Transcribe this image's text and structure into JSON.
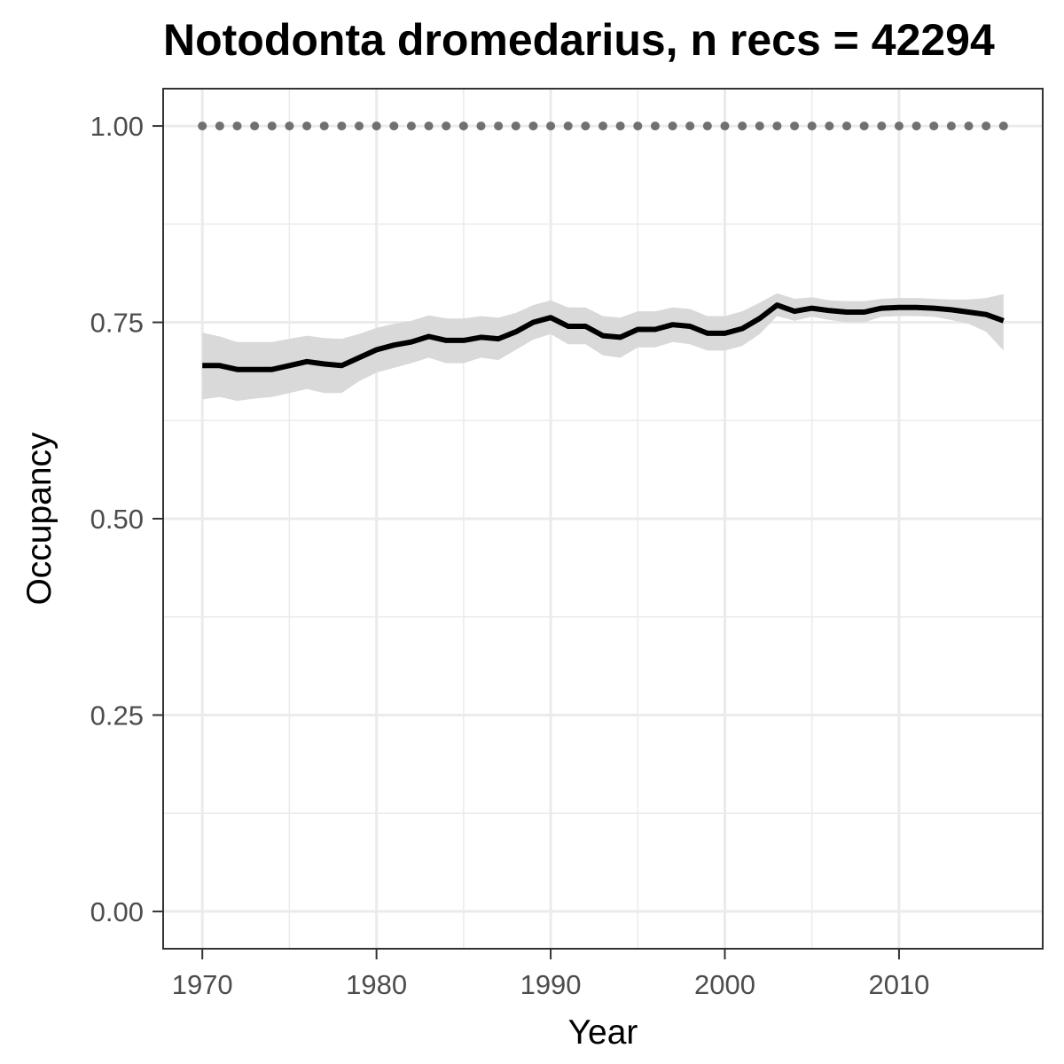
{
  "chart_data": {
    "type": "line",
    "title": "Notodonta dromedarius, n recs = 42294",
    "xlabel": "Year",
    "ylabel": "Occupancy",
    "xlim": [
      1967.75,
      2018.25
    ],
    "ylim": [
      -0.0475,
      1.0475
    ],
    "x_ticks": [
      1970,
      1980,
      1990,
      2000,
      2010
    ],
    "x_tick_labels": [
      "1970",
      "1980",
      "1990",
      "2000",
      "2010"
    ],
    "y_ticks": [
      0,
      0.25,
      0.5,
      0.75,
      1.0
    ],
    "y_tick_labels": [
      "0.00",
      "0.25",
      "0.50",
      "0.75",
      "1.00"
    ],
    "grid": true,
    "legend": "none",
    "colors": {
      "line": "#000000",
      "ribbon": "#d9d9d9",
      "reference": "#707070",
      "grid": "#ebebeb",
      "panel_border": "#333333"
    },
    "x": [
      1970,
      1971,
      1972,
      1973,
      1974,
      1975,
      1976,
      1977,
      1978,
      1979,
      1980,
      1981,
      1982,
      1983,
      1984,
      1985,
      1986,
      1987,
      1988,
      1989,
      1990,
      1991,
      1992,
      1993,
      1994,
      1995,
      1996,
      1997,
      1998,
      1999,
      2000,
      2001,
      2002,
      2003,
      2004,
      2005,
      2006,
      2007,
      2008,
      2009,
      2010,
      2011,
      2012,
      2013,
      2014,
      2015,
      2016
    ],
    "series": [
      {
        "values": [
          0.695,
          0.695,
          0.69,
          0.69,
          0.69,
          0.695,
          0.7,
          0.697,
          0.695,
          0.705,
          0.715,
          0.721,
          0.725,
          0.732,
          0.727,
          0.727,
          0.731,
          0.729,
          0.738,
          0.75,
          0.756,
          0.745,
          0.745,
          0.733,
          0.731,
          0.741,
          0.741,
          0.747,
          0.745,
          0.736,
          0.736,
          0.742,
          0.755,
          0.772,
          0.764,
          0.768,
          0.765,
          0.763,
          0.763,
          0.768,
          0.769,
          0.769,
          0.768,
          0.766,
          0.763,
          0.76,
          0.752
        ],
        "lower": [
          0.652,
          0.655,
          0.65,
          0.653,
          0.655,
          0.66,
          0.665,
          0.66,
          0.66,
          0.675,
          0.686,
          0.692,
          0.698,
          0.705,
          0.698,
          0.698,
          0.705,
          0.702,
          0.715,
          0.728,
          0.735,
          0.722,
          0.722,
          0.708,
          0.705,
          0.718,
          0.718,
          0.725,
          0.722,
          0.714,
          0.714,
          0.72,
          0.735,
          0.758,
          0.752,
          0.757,
          0.753,
          0.75,
          0.75,
          0.757,
          0.758,
          0.758,
          0.757,
          0.753,
          0.748,
          0.738,
          0.714
        ],
        "upper": [
          0.737,
          0.732,
          0.725,
          0.725,
          0.725,
          0.729,
          0.733,
          0.73,
          0.729,
          0.735,
          0.743,
          0.748,
          0.752,
          0.759,
          0.755,
          0.755,
          0.758,
          0.756,
          0.762,
          0.772,
          0.778,
          0.769,
          0.769,
          0.758,
          0.756,
          0.764,
          0.764,
          0.769,
          0.767,
          0.758,
          0.758,
          0.764,
          0.775,
          0.787,
          0.78,
          0.782,
          0.778,
          0.777,
          0.777,
          0.78,
          0.781,
          0.781,
          0.78,
          0.779,
          0.779,
          0.781,
          0.786
        ]
      },
      {
        "values": [
          1,
          1,
          1,
          1,
          1,
          1,
          1,
          1,
          1,
          1,
          1,
          1,
          1,
          1,
          1,
          1,
          1,
          1,
          1,
          1,
          1,
          1,
          1,
          1,
          1,
          1,
          1,
          1,
          1,
          1,
          1,
          1,
          1,
          1,
          1,
          1,
          1,
          1,
          1,
          1,
          1,
          1,
          1,
          1,
          1,
          1,
          1
        ],
        "style": "dotted"
      }
    ]
  }
}
